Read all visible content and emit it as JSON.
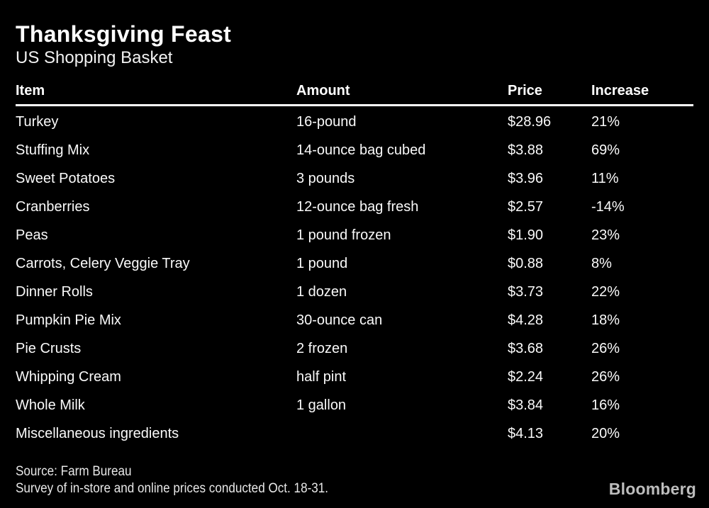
{
  "chart_data": {
    "type": "table",
    "title": "Thanksgiving Feast",
    "subtitle": "US Shopping Basket",
    "columns": [
      "Item",
      "Amount",
      "Price",
      "Increase"
    ],
    "rows": [
      {
        "item": "Turkey",
        "amount": "16-pound",
        "price": "$28.96",
        "increase": "21%"
      },
      {
        "item": "Stuffing Mix",
        "amount": "14-ounce bag cubed",
        "price": "$3.88",
        "increase": "69%"
      },
      {
        "item": "Sweet Potatoes",
        "amount": "3 pounds",
        "price": "$3.96",
        "increase": "11%"
      },
      {
        "item": "Cranberries",
        "amount": "12-ounce bag fresh",
        "price": "$2.57",
        "increase": "-14%"
      },
      {
        "item": "Peas",
        "amount": "1 pound frozen",
        "price": "$1.90",
        "increase": "23%"
      },
      {
        "item": "Carrots, Celery Veggie Tray",
        "amount": "1 pound",
        "price": "$0.88",
        "increase": "8%"
      },
      {
        "item": "Dinner Rolls",
        "amount": "1 dozen",
        "price": "$3.73",
        "increase": "22%"
      },
      {
        "item": "Pumpkin Pie Mix",
        "amount": "30-ounce can",
        "price": "$4.28",
        "increase": "18%"
      },
      {
        "item": "Pie Crusts",
        "amount": "2 frozen",
        "price": "$3.68",
        "increase": "26%"
      },
      {
        "item": "Whipping Cream",
        "amount": "half pint",
        "price": "$2.24",
        "increase": "26%"
      },
      {
        "item": "Whole Milk",
        "amount": "1 gallon",
        "price": "$3.84",
        "increase": "16%"
      },
      {
        "item": "Miscellaneous ingredients",
        "amount": "",
        "price": "$4.13",
        "increase": "20%"
      }
    ],
    "source": "Source: Farm Bureau",
    "note": "Survey of in-store and online prices conducted Oct. 18-31.",
    "grid": false,
    "legend_position": "none"
  },
  "branding": {
    "logo_text": "Bloomberg"
  },
  "colors": {
    "background": "#000000",
    "title_text": "#ffffff",
    "body_text": "#fafafa",
    "header_rule": "#ffffff",
    "footnote_text": "#e8e8e8",
    "logo_text": "#bdbdbd"
  }
}
